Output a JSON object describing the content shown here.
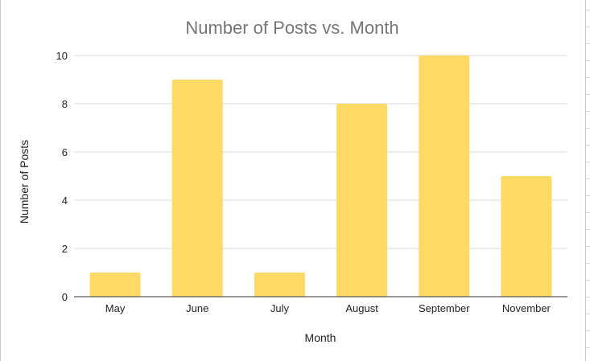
{
  "chart_data": {
    "type": "bar",
    "title": "Number of Posts vs. Month",
    "xlabel": "Month",
    "ylabel": "Number of Posts",
    "categories": [
      "May",
      "June",
      "July",
      "August",
      "September",
      "November"
    ],
    "values": [
      1,
      9,
      1,
      8,
      10,
      5
    ],
    "ylim": [
      0,
      10
    ],
    "yticks": [
      0,
      2,
      4,
      6,
      8,
      10
    ],
    "grid": true,
    "legend": "none",
    "bar_color": "#ffd966"
  }
}
